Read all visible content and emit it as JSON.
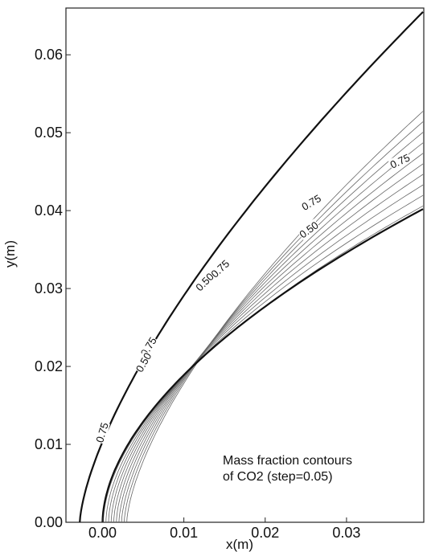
{
  "chart_data": {
    "type": "line",
    "title": "",
    "xlabel": "x(m)",
    "ylabel": "y(m)",
    "xlim": [
      -0.0045,
      0.0395
    ],
    "ylim": [
      0.0,
      0.066
    ],
    "x_ticks": [
      {
        "value": 0.0,
        "label": "0.00"
      },
      {
        "value": 0.01,
        "label": "0.01"
      },
      {
        "value": 0.02,
        "label": "0.02"
      },
      {
        "value": 0.03,
        "label": "0.03"
      }
    ],
    "y_ticks": [
      {
        "value": 0.0,
        "label": "0.00"
      },
      {
        "value": 0.01,
        "label": "0.01"
      },
      {
        "value": 0.02,
        "label": "0.02"
      },
      {
        "value": 0.03,
        "label": "0.03"
      },
      {
        "value": 0.04,
        "label": "0.04"
      },
      {
        "value": 0.05,
        "label": "0.05"
      },
      {
        "value": 0.06,
        "label": "0.06"
      }
    ],
    "grid": false,
    "annotation": [
      "Mass fraction contours",
      "of CO2 (step=0.05)"
    ],
    "boundaries": [
      {
        "name": "outer",
        "x0": -0.0028,
        "y_end": 0.0655,
        "exp": 0.68
      },
      {
        "name": "body",
        "x0": 0.0,
        "y_end": 0.0402,
        "exp": 0.55
      }
    ],
    "contours": {
      "count": 10,
      "x_start_first": 0.0001,
      "x_start_spacing": 0.00032,
      "y_end_first": 0.0406,
      "y_end_spacing": 0.00135,
      "exp_first": 0.56,
      "exp_spacing": 0.011,
      "x_end": 0.0394
    },
    "contour_labels": [
      {
        "text": "0.75",
        "x": 0.0,
        "y": 0.0115
      },
      {
        "text": "0.75",
        "x": 0.0057,
        "y": 0.0225
      },
      {
        "text": "0.50",
        "x": 0.0051,
        "y": 0.0205
      },
      {
        "text": "0.75",
        "x": 0.0145,
        "y": 0.0325
      },
      {
        "text": "0.50",
        "x": 0.0126,
        "y": 0.0308
      },
      {
        "text": "0.75",
        "x": 0.0257,
        "y": 0.041
      },
      {
        "text": "0.50",
        "x": 0.0254,
        "y": 0.0375
      },
      {
        "text": "0.75",
        "x": 0.0366,
        "y": 0.0463
      }
    ]
  }
}
